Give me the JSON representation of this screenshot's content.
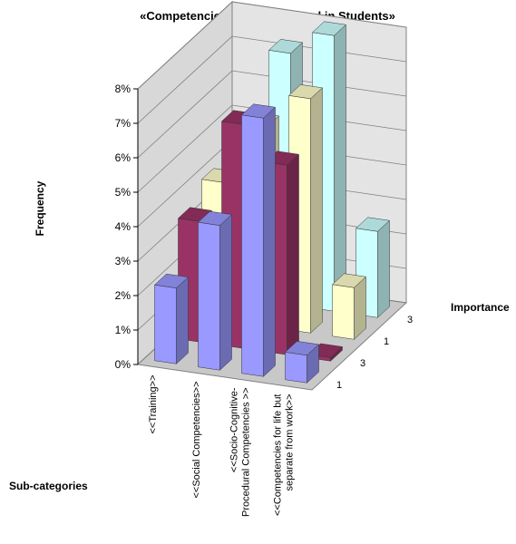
{
  "chart_data": {
    "type": "bar3d",
    "title": "«Competencies to be Developed in Students»",
    "y_label": "Frequency",
    "depth_label": "Importance",
    "x_label": "Sub-categories",
    "categories": [
      [
        "<<Training>>"
      ],
      [
        "<<Social Competencies>>"
      ],
      [
        "<<Socio-Cognitive-",
        "Procedural Competencies >>"
      ],
      [
        "<<Competencies for life but",
        "separate from work>>"
      ]
    ],
    "series": [
      {
        "name": "1",
        "color": "#9999ff",
        "values": [
          2.2,
          4.2,
          7.5,
          0.8
        ]
      },
      {
        "name": "3",
        "color": "#993366",
        "values": [
          3.5,
          6.5,
          5.5,
          0.1
        ]
      },
      {
        "name": "1",
        "color": "#ffffcc",
        "values": [
          4.0,
          5.8,
          6.8,
          1.5
        ]
      },
      {
        "name": "3",
        "color": "#ccffff",
        "values": [
          5.0,
          7.3,
          8.0,
          2.5
        ]
      }
    ],
    "ylim": [
      0,
      8
    ],
    "yticks": [
      {
        "value": 0,
        "label": "0%"
      },
      {
        "value": 1,
        "label": "1%"
      },
      {
        "value": 2,
        "label": "2%"
      },
      {
        "value": 3,
        "label": "3%"
      },
      {
        "value": 4,
        "label": "4%"
      },
      {
        "value": 5,
        "label": "5%"
      },
      {
        "value": 6,
        "label": "6%"
      },
      {
        "value": 7,
        "label": "7%"
      },
      {
        "value": 8,
        "label": "8%"
      }
    ],
    "grid": true
  }
}
